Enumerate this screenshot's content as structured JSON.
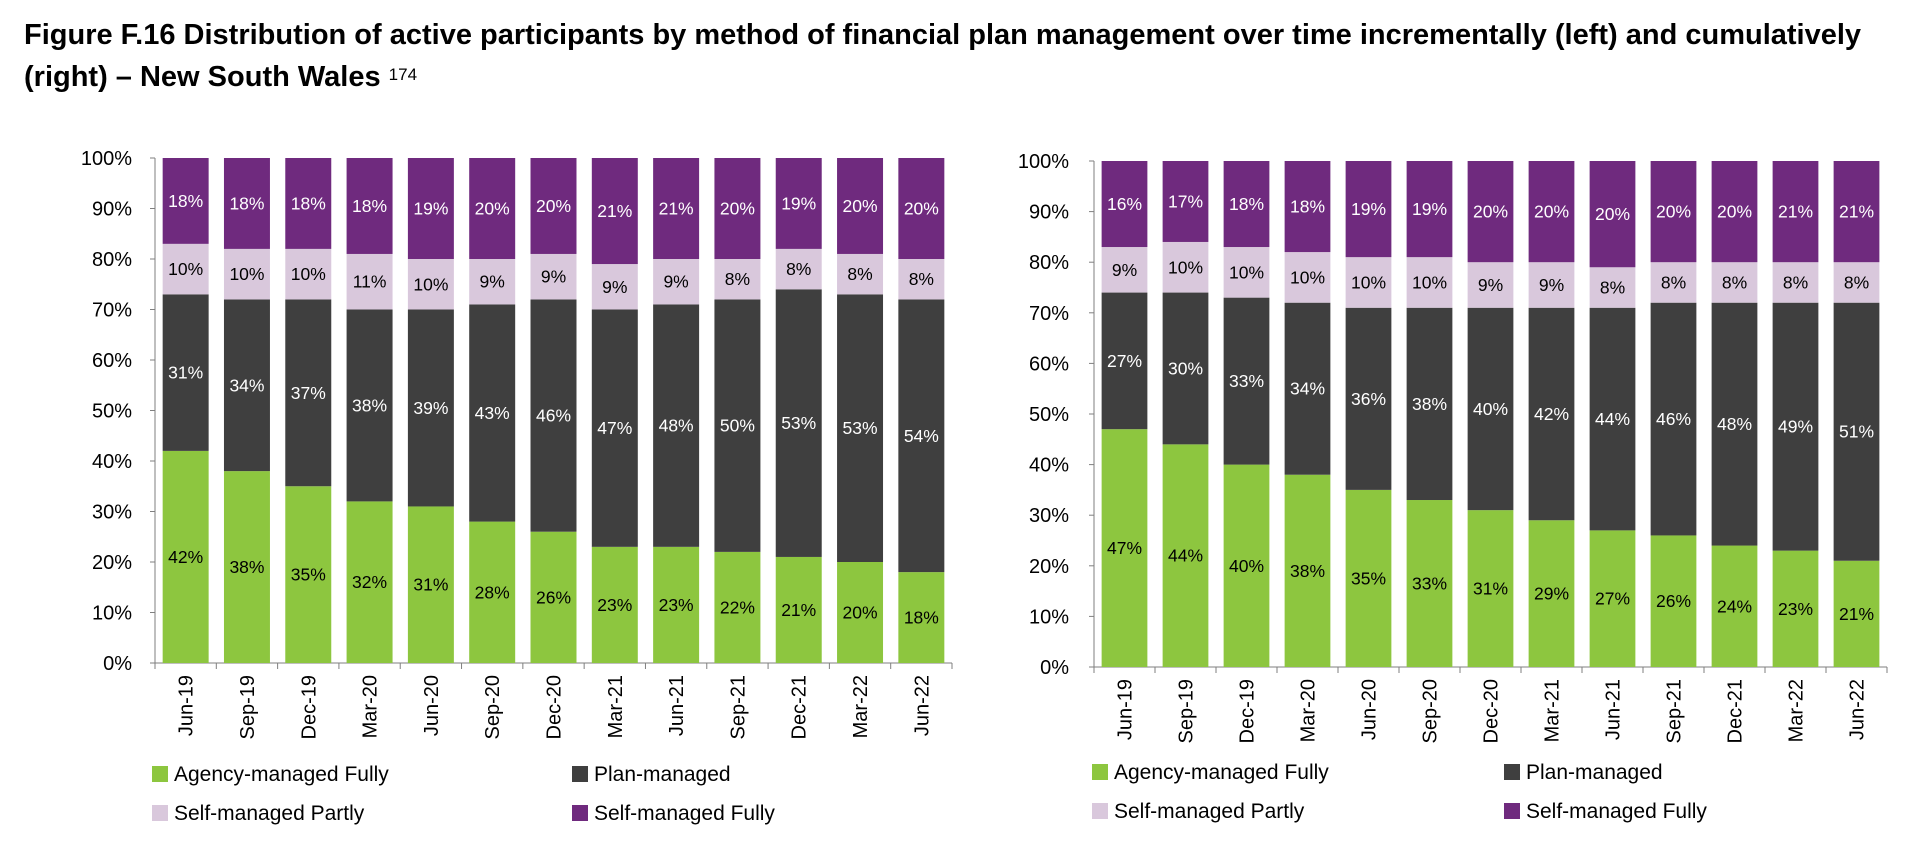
{
  "title": "Figure F.16 Distribution of active participants by method of financial plan management over time incrementally (left) and cumulatively (right) – New South Wales",
  "title_footnote": "174",
  "colors": {
    "agency": "#8dc63f",
    "plan": "#3f3f3f",
    "self_partly": "#d9c8dc",
    "self_fully": "#6f2a7e"
  },
  "chart_data": [
    {
      "type": "bar",
      "stacked": true,
      "categories": [
        "Jun-19",
        "Sep-19",
        "Dec-19",
        "Mar-20",
        "Jun-20",
        "Sep-20",
        "Dec-20",
        "Mar-21",
        "Jun-21",
        "Sep-21",
        "Dec-21",
        "Mar-22",
        "Jun-22"
      ],
      "ylim": [
        0,
        100
      ],
      "yticks": [
        "0%",
        "10%",
        "20%",
        "30%",
        "40%",
        "50%",
        "60%",
        "70%",
        "80%",
        "90%",
        "100%"
      ],
      "legend_position": "bottom",
      "series": [
        {
          "name": "Agency-managed Fully",
          "color_key": "agency",
          "values": [
            42,
            38,
            35,
            32,
            31,
            28,
            26,
            23,
            23,
            22,
            21,
            20,
            18
          ]
        },
        {
          "name": "Plan-managed",
          "color_key": "plan",
          "values": [
            31,
            34,
            37,
            38,
            39,
            43,
            46,
            47,
            48,
            50,
            53,
            53,
            54
          ]
        },
        {
          "name": "Self-managed Partly",
          "color_key": "self_partly",
          "values": [
            10,
            10,
            10,
            11,
            10,
            9,
            9,
            9,
            9,
            8,
            8,
            8,
            8
          ]
        },
        {
          "name": "Self-managed Fully",
          "color_key": "self_fully",
          "values": [
            18,
            18,
            18,
            18,
            19,
            20,
            20,
            21,
            21,
            20,
            19,
            20,
            20
          ]
        }
      ]
    },
    {
      "type": "bar",
      "stacked": true,
      "categories": [
        "Jun-19",
        "Sep-19",
        "Dec-19",
        "Mar-20",
        "Jun-20",
        "Sep-20",
        "Dec-20",
        "Mar-21",
        "Jun-21",
        "Sep-21",
        "Dec-21",
        "Mar-22",
        "Jun-22"
      ],
      "ylim": [
        0,
        100
      ],
      "yticks": [
        "0%",
        "10%",
        "20%",
        "30%",
        "40%",
        "50%",
        "60%",
        "70%",
        "80%",
        "90%",
        "100%"
      ],
      "legend_position": "bottom",
      "series": [
        {
          "name": "Agency-managed Fully",
          "color_key": "agency",
          "values": [
            47,
            44,
            40,
            38,
            35,
            33,
            31,
            29,
            27,
            26,
            24,
            23,
            21
          ]
        },
        {
          "name": "Plan-managed",
          "color_key": "plan",
          "values": [
            27,
            30,
            33,
            34,
            36,
            38,
            40,
            42,
            44,
            46,
            48,
            49,
            51
          ]
        },
        {
          "name": "Self-managed Partly",
          "color_key": "self_partly",
          "values": [
            9,
            10,
            10,
            10,
            10,
            10,
            9,
            9,
            8,
            8,
            8,
            8,
            8
          ]
        },
        {
          "name": "Self-managed Fully",
          "color_key": "self_fully",
          "values": [
            16,
            17,
            18,
            18,
            19,
            19,
            20,
            20,
            20,
            20,
            20,
            21,
            21
          ]
        }
      ]
    }
  ]
}
